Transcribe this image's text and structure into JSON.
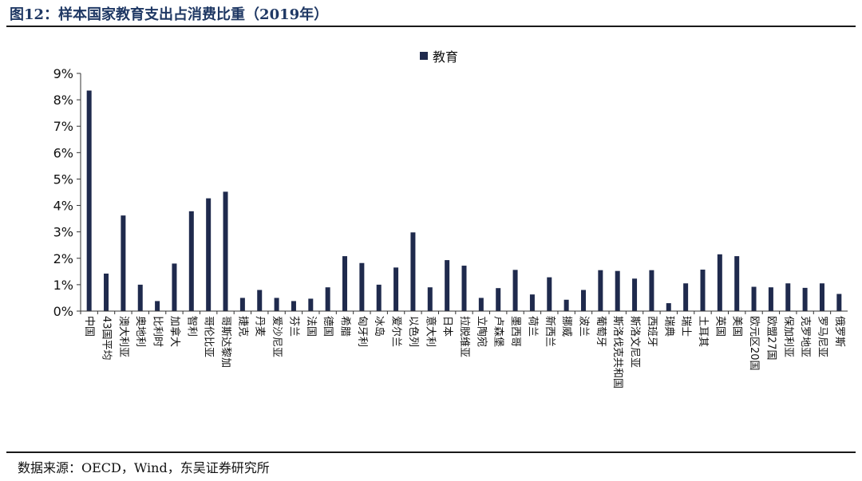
{
  "figure": {
    "title": "图12：样本国家教育支出占消费比重（2019年）",
    "source": "数据来源：OECD，Wind，东吴证券研究所"
  },
  "colors": {
    "bar": "#1f2a4d",
    "axis": "#333333"
  },
  "chart_data": {
    "type": "bar",
    "title": "",
    "xlabel": "",
    "ylabel": "",
    "ylim": [
      0,
      9
    ],
    "yticks": [
      "0%",
      "1%",
      "2%",
      "3%",
      "4%",
      "5%",
      "6%",
      "7%",
      "8%",
      "9%"
    ],
    "legend_position": "top-center",
    "grid": false,
    "categories": [
      "中国",
      "43国平均",
      "澳大利亚",
      "奥地利",
      "比利时",
      "加拿大",
      "智利",
      "哥伦比亚",
      "哥斯达黎加",
      "捷克",
      "丹麦",
      "爱沙尼亚",
      "芬兰",
      "法国",
      "德国",
      "希腊",
      "匈牙利",
      "冰岛",
      "爱尔兰",
      "以色列",
      "意大利",
      "日本",
      "拉脱维亚",
      "立陶宛",
      "卢森堡",
      "墨西哥",
      "荷兰",
      "新西兰",
      "挪威",
      "波兰",
      "葡萄牙",
      "斯洛伐克共和国",
      "斯洛文尼亚",
      "西班牙",
      "瑞典",
      "瑞士",
      "土耳其",
      "英国",
      "美国",
      "欧元区20国",
      "欧盟27国",
      "保加利亚",
      "克罗地亚",
      "罗马尼亚",
      "俄罗斯"
    ],
    "series": [
      {
        "name": "教育",
        "values": [
          8.35,
          1.42,
          3.62,
          1.0,
          0.38,
          1.8,
          3.78,
          4.27,
          4.52,
          0.5,
          0.8,
          0.5,
          0.38,
          0.47,
          0.9,
          2.08,
          1.82,
          1.0,
          1.65,
          2.98,
          0.9,
          1.93,
          1.72,
          0.5,
          0.87,
          1.56,
          0.63,
          1.28,
          0.43,
          0.8,
          1.55,
          1.52,
          1.23,
          1.55,
          0.3,
          1.05,
          1.57,
          2.15,
          2.08,
          0.92,
          0.9,
          1.05,
          0.88,
          1.05,
          0.65
        ]
      }
    ]
  }
}
